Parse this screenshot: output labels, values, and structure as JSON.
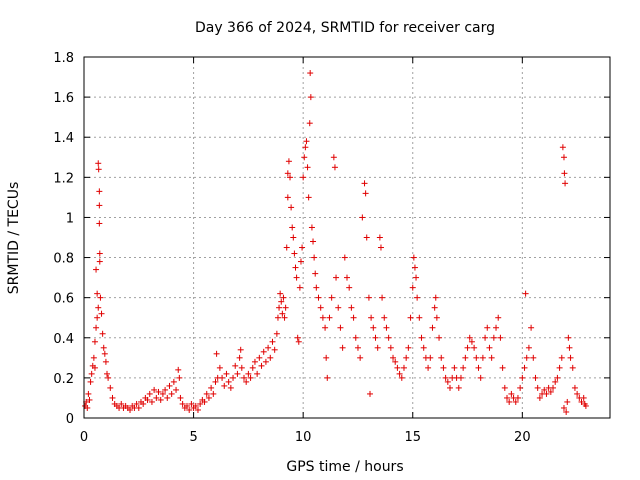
{
  "chart_data": {
    "type": "scatter",
    "title": "Day 366 of 2024, SRMTID for receiver carg",
    "xlabel": "GPS time / hours",
    "ylabel": "SRMTID / TECUs",
    "xlim": [
      0,
      24
    ],
    "ylim": [
      0,
      1.8
    ],
    "xticks": [
      0,
      5,
      10,
      15,
      20
    ],
    "yticks": [
      0,
      0.2,
      0.4,
      0.6,
      0.8,
      1,
      1.2,
      1.4,
      1.6,
      1.8
    ],
    "xtick_labels": [
      "0",
      "5",
      "10",
      "15",
      "20"
    ],
    "ytick_labels": [
      "0",
      "0.2",
      "0.4",
      "0.6",
      "0.8",
      "1",
      "1.2",
      "1.4",
      "1.6",
      "1.8"
    ],
    "grid": true,
    "marker": "+",
    "color": "#e00000",
    "series": [
      {
        "name": "SRMTID",
        "points": [
          [
            0.05,
            0.06
          ],
          [
            0.1,
            0.08
          ],
          [
            0.15,
            0.05
          ],
          [
            0.2,
            0.12
          ],
          [
            0.25,
            0.09
          ],
          [
            0.3,
            0.18
          ],
          [
            0.35,
            0.22
          ],
          [
            0.4,
            0.26
          ],
          [
            0.45,
            0.3
          ],
          [
            0.5,
            0.38
          ],
          [
            0.5,
            0.25
          ],
          [
            0.55,
            0.45
          ],
          [
            0.55,
            0.74
          ],
          [
            0.6,
            0.5
          ],
          [
            0.6,
            0.62
          ],
          [
            0.65,
            0.55
          ],
          [
            0.65,
            1.27
          ],
          [
            0.67,
            1.24
          ],
          [
            0.7,
            1.13
          ],
          [
            0.7,
            1.06
          ],
          [
            0.7,
            0.97
          ],
          [
            0.72,
            0.82
          ],
          [
            0.72,
            0.78
          ],
          [
            0.75,
            0.6
          ],
          [
            0.8,
            0.52
          ],
          [
            0.85,
            0.42
          ],
          [
            0.9,
            0.35
          ],
          [
            0.95,
            0.32
          ],
          [
            1.0,
            0.28
          ],
          [
            1.05,
            0.22
          ],
          [
            1.1,
            0.2
          ],
          [
            1.2,
            0.15
          ],
          [
            1.3,
            0.1
          ],
          [
            1.4,
            0.07
          ],
          [
            1.5,
            0.06
          ],
          [
            1.6,
            0.05
          ],
          [
            1.7,
            0.07
          ],
          [
            1.8,
            0.05
          ],
          [
            1.9,
            0.06
          ],
          [
            2.0,
            0.05
          ],
          [
            2.1,
            0.04
          ],
          [
            2.2,
            0.06
          ],
          [
            2.3,
            0.05
          ],
          [
            2.4,
            0.07
          ],
          [
            2.5,
            0.05
          ],
          [
            2.6,
            0.08
          ],
          [
            2.7,
            0.07
          ],
          [
            2.8,
            0.1
          ],
          [
            2.9,
            0.09
          ],
          [
            3.0,
            0.12
          ],
          [
            3.1,
            0.08
          ],
          [
            3.2,
            0.14
          ],
          [
            3.3,
            0.1
          ],
          [
            3.4,
            0.13
          ],
          [
            3.5,
            0.09
          ],
          [
            3.6,
            0.12
          ],
          [
            3.7,
            0.14
          ],
          [
            3.8,
            0.1
          ],
          [
            3.9,
            0.16
          ],
          [
            4.0,
            0.12
          ],
          [
            4.1,
            0.18
          ],
          [
            4.2,
            0.14
          ],
          [
            4.3,
            0.24
          ],
          [
            4.35,
            0.2
          ],
          [
            4.4,
            0.1
          ],
          [
            4.5,
            0.07
          ],
          [
            4.6,
            0.05
          ],
          [
            4.7,
            0.06
          ],
          [
            4.8,
            0.04
          ],
          [
            4.9,
            0.07
          ],
          [
            5.0,
            0.05
          ],
          [
            5.1,
            0.06
          ],
          [
            5.2,
            0.04
          ],
          [
            5.3,
            0.07
          ],
          [
            5.4,
            0.09
          ],
          [
            5.5,
            0.08
          ],
          [
            5.6,
            0.12
          ],
          [
            5.7,
            0.1
          ],
          [
            5.8,
            0.15
          ],
          [
            5.9,
            0.12
          ],
          [
            6.0,
            0.18
          ],
          [
            6.05,
            0.32
          ],
          [
            6.1,
            0.2
          ],
          [
            6.2,
            0.25
          ],
          [
            6.3,
            0.2
          ],
          [
            6.4,
            0.16
          ],
          [
            6.5,
            0.22
          ],
          [
            6.6,
            0.18
          ],
          [
            6.7,
            0.15
          ],
          [
            6.8,
            0.2
          ],
          [
            6.9,
            0.26
          ],
          [
            7.0,
            0.22
          ],
          [
            7.1,
            0.3
          ],
          [
            7.15,
            0.34
          ],
          [
            7.2,
            0.25
          ],
          [
            7.3,
            0.2
          ],
          [
            7.4,
            0.18
          ],
          [
            7.5,
            0.22
          ],
          [
            7.6,
            0.2
          ],
          [
            7.7,
            0.25
          ],
          [
            7.8,
            0.28
          ],
          [
            7.9,
            0.22
          ],
          [
            8.0,
            0.3
          ],
          [
            8.1,
            0.26
          ],
          [
            8.2,
            0.33
          ],
          [
            8.3,
            0.28
          ],
          [
            8.4,
            0.35
          ],
          [
            8.5,
            0.3
          ],
          [
            8.6,
            0.38
          ],
          [
            8.7,
            0.34
          ],
          [
            8.8,
            0.42
          ],
          [
            8.85,
            0.5
          ],
          [
            8.9,
            0.55
          ],
          [
            8.95,
            0.62
          ],
          [
            9.0,
            0.58
          ],
          [
            9.05,
            0.52
          ],
          [
            9.1,
            0.6
          ],
          [
            9.15,
            0.5
          ],
          [
            9.2,
            0.55
          ],
          [
            9.25,
            0.85
          ],
          [
            9.3,
            1.1
          ],
          [
            9.3,
            1.22
          ],
          [
            9.35,
            1.28
          ],
          [
            9.4,
            1.2
          ],
          [
            9.45,
            1.05
          ],
          [
            9.5,
            0.95
          ],
          [
            9.55,
            0.9
          ],
          [
            9.6,
            0.82
          ],
          [
            9.65,
            0.75
          ],
          [
            9.7,
            0.7
          ],
          [
            9.75,
            0.4
          ],
          [
            9.8,
            0.38
          ],
          [
            9.85,
            0.65
          ],
          [
            9.9,
            0.78
          ],
          [
            9.95,
            0.85
          ],
          [
            10.0,
            1.2
          ],
          [
            10.05,
            1.3
          ],
          [
            10.1,
            1.35
          ],
          [
            10.15,
            1.38
          ],
          [
            10.2,
            1.25
          ],
          [
            10.25,
            1.1
          ],
          [
            10.3,
            1.47
          ],
          [
            10.32,
            1.72
          ],
          [
            10.35,
            1.6
          ],
          [
            10.4,
            0.95
          ],
          [
            10.45,
            0.88
          ],
          [
            10.5,
            0.8
          ],
          [
            10.55,
            0.72
          ],
          [
            10.6,
            0.65
          ],
          [
            10.7,
            0.6
          ],
          [
            10.8,
            0.55
          ],
          [
            10.9,
            0.5
          ],
          [
            11.0,
            0.45
          ],
          [
            11.05,
            0.3
          ],
          [
            11.1,
            0.2
          ],
          [
            11.2,
            0.5
          ],
          [
            11.3,
            0.6
          ],
          [
            11.4,
            1.3
          ],
          [
            11.45,
            1.25
          ],
          [
            11.5,
            0.7
          ],
          [
            11.6,
            0.55
          ],
          [
            11.7,
            0.45
          ],
          [
            11.8,
            0.35
          ],
          [
            11.9,
            0.8
          ],
          [
            12.0,
            0.7
          ],
          [
            12.1,
            0.65
          ],
          [
            12.2,
            0.55
          ],
          [
            12.3,
            0.5
          ],
          [
            12.4,
            0.4
          ],
          [
            12.5,
            0.35
          ],
          [
            12.6,
            0.3
          ],
          [
            12.7,
            1.0
          ],
          [
            12.8,
            1.17
          ],
          [
            12.85,
            1.12
          ],
          [
            12.9,
            0.9
          ],
          [
            13.0,
            0.6
          ],
          [
            13.05,
            0.12
          ],
          [
            13.1,
            0.5
          ],
          [
            13.2,
            0.45
          ],
          [
            13.3,
            0.4
          ],
          [
            13.4,
            0.35
          ],
          [
            13.5,
            0.9
          ],
          [
            13.55,
            0.85
          ],
          [
            13.6,
            0.6
          ],
          [
            13.7,
            0.5
          ],
          [
            13.8,
            0.45
          ],
          [
            13.9,
            0.4
          ],
          [
            14.0,
            0.35
          ],
          [
            14.1,
            0.3
          ],
          [
            14.2,
            0.28
          ],
          [
            14.3,
            0.25
          ],
          [
            14.4,
            0.22
          ],
          [
            14.5,
            0.2
          ],
          [
            14.6,
            0.25
          ],
          [
            14.7,
            0.3
          ],
          [
            14.8,
            0.35
          ],
          [
            14.9,
            0.5
          ],
          [
            15.0,
            0.65
          ],
          [
            15.05,
            0.8
          ],
          [
            15.1,
            0.75
          ],
          [
            15.15,
            0.7
          ],
          [
            15.2,
            0.6
          ],
          [
            15.3,
            0.5
          ],
          [
            15.4,
            0.4
          ],
          [
            15.5,
            0.35
          ],
          [
            15.6,
            0.3
          ],
          [
            15.7,
            0.25
          ],
          [
            15.8,
            0.3
          ],
          [
            15.9,
            0.45
          ],
          [
            16.0,
            0.55
          ],
          [
            16.05,
            0.6
          ],
          [
            16.1,
            0.5
          ],
          [
            16.2,
            0.4
          ],
          [
            16.3,
            0.3
          ],
          [
            16.4,
            0.25
          ],
          [
            16.5,
            0.2
          ],
          [
            16.6,
            0.18
          ],
          [
            16.7,
            0.15
          ],
          [
            16.8,
            0.2
          ],
          [
            16.9,
            0.25
          ],
          [
            17.0,
            0.2
          ],
          [
            17.1,
            0.15
          ],
          [
            17.2,
            0.2
          ],
          [
            17.3,
            0.25
          ],
          [
            17.4,
            0.3
          ],
          [
            17.5,
            0.35
          ],
          [
            17.6,
            0.4
          ],
          [
            17.7,
            0.38
          ],
          [
            17.8,
            0.35
          ],
          [
            17.9,
            0.3
          ],
          [
            18.0,
            0.25
          ],
          [
            18.1,
            0.2
          ],
          [
            18.2,
            0.3
          ],
          [
            18.3,
            0.4
          ],
          [
            18.4,
            0.45
          ],
          [
            18.5,
            0.35
          ],
          [
            18.6,
            0.3
          ],
          [
            18.7,
            0.4
          ],
          [
            18.8,
            0.45
          ],
          [
            18.9,
            0.5
          ],
          [
            19.0,
            0.4
          ],
          [
            19.1,
            0.25
          ],
          [
            19.2,
            0.15
          ],
          [
            19.3,
            0.1
          ],
          [
            19.4,
            0.08
          ],
          [
            19.5,
            0.12
          ],
          [
            19.6,
            0.1
          ],
          [
            19.7,
            0.08
          ],
          [
            19.8,
            0.1
          ],
          [
            19.9,
            0.15
          ],
          [
            20.0,
            0.2
          ],
          [
            20.1,
            0.25
          ],
          [
            20.15,
            0.62
          ],
          [
            20.2,
            0.3
          ],
          [
            20.3,
            0.35
          ],
          [
            20.4,
            0.45
          ],
          [
            20.5,
            0.3
          ],
          [
            20.6,
            0.2
          ],
          [
            20.7,
            0.15
          ],
          [
            20.8,
            0.1
          ],
          [
            20.9,
            0.12
          ],
          [
            21.0,
            0.14
          ],
          [
            21.1,
            0.12
          ],
          [
            21.2,
            0.15
          ],
          [
            21.3,
            0.13
          ],
          [
            21.4,
            0.15
          ],
          [
            21.5,
            0.18
          ],
          [
            21.6,
            0.2
          ],
          [
            21.7,
            0.25
          ],
          [
            21.8,
            0.3
          ],
          [
            21.85,
            1.35
          ],
          [
            21.9,
            1.3
          ],
          [
            21.92,
            1.22
          ],
          [
            21.95,
            1.17
          ],
          [
            21.9,
            0.05
          ],
          [
            22.0,
            0.03
          ],
          [
            22.05,
            0.08
          ],
          [
            22.1,
            0.4
          ],
          [
            22.15,
            0.35
          ],
          [
            22.2,
            0.3
          ],
          [
            22.3,
            0.25
          ],
          [
            22.4,
            0.15
          ],
          [
            22.5,
            0.12
          ],
          [
            22.6,
            0.1
          ],
          [
            22.7,
            0.08
          ],
          [
            22.8,
            0.1
          ],
          [
            22.85,
            0.07
          ],
          [
            22.9,
            0.06
          ]
        ]
      }
    ]
  }
}
